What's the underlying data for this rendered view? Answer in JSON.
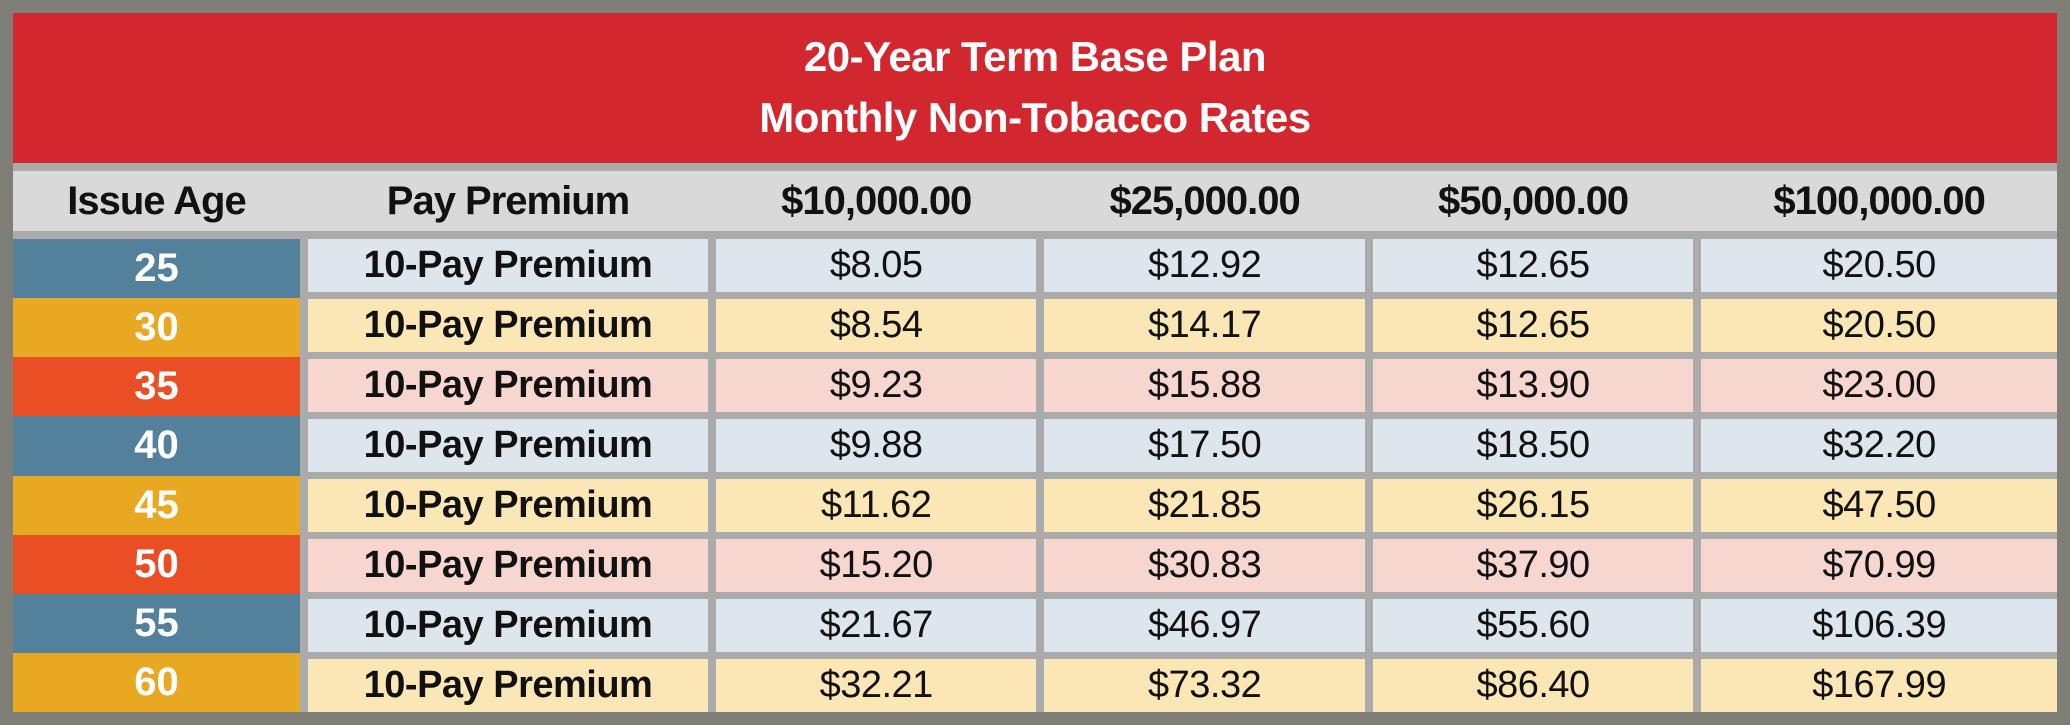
{
  "title": {
    "line1": "20-Year Term Base Plan",
    "line2": "Monthly Non-Tobacco Rates"
  },
  "columns": [
    "Issue Age",
    "Pay Premium",
    "$10,000.00",
    "$25,000.00",
    "$50,000.00",
    "$100,000.00"
  ],
  "table": {
    "rows": [
      {
        "age": "25",
        "plan": "10-Pay Premium",
        "theme": "blue",
        "rates": [
          "$8.05",
          "$12.92",
          "$12.65",
          "$20.50"
        ]
      },
      {
        "age": "30",
        "plan": "10-Pay Premium",
        "theme": "gold",
        "rates": [
          "$8.54",
          "$14.17",
          "$12.65",
          "$20.50"
        ]
      },
      {
        "age": "35",
        "plan": "10-Pay Premium",
        "theme": "orange",
        "rates": [
          "$9.23",
          "$15.88",
          "$13.90",
          "$23.00"
        ]
      },
      {
        "age": "40",
        "plan": "10-Pay Premium",
        "theme": "blue",
        "rates": [
          "$9.88",
          "$17.50",
          "$18.50",
          "$32.20"
        ]
      },
      {
        "age": "45",
        "plan": "10-Pay Premium",
        "theme": "gold",
        "rates": [
          "$11.62",
          "$21.85",
          "$26.15",
          "$47.50"
        ]
      },
      {
        "age": "50",
        "plan": "10-Pay Premium",
        "theme": "orange",
        "rates": [
          "$15.20",
          "$30.83",
          "$37.90",
          "$70.99"
        ]
      },
      {
        "age": "55",
        "plan": "10-Pay Premium",
        "theme": "blue",
        "rates": [
          "$21.67",
          "$46.97",
          "$55.60",
          "$106.39"
        ]
      },
      {
        "age": "60",
        "plan": "10-Pay Premium",
        "theme": "gold",
        "rates": [
          "$32.21",
          "$73.32",
          "$86.40",
          "$167.99"
        ]
      }
    ]
  },
  "chart_data": {
    "type": "table",
    "title": "20-Year Term Base Plan Monthly Non-Tobacco Rates",
    "columns": [
      "Issue Age",
      "Pay Premium",
      "$10,000.00",
      "$25,000.00",
      "$50,000.00",
      "$100,000.00"
    ],
    "rows": [
      [
        "25",
        "10-Pay Premium",
        8.05,
        12.92,
        12.65,
        20.5
      ],
      [
        "30",
        "10-Pay Premium",
        8.54,
        14.17,
        12.65,
        20.5
      ],
      [
        "35",
        "10-Pay Premium",
        9.23,
        15.88,
        13.9,
        23.0
      ],
      [
        "40",
        "10-Pay Premium",
        9.88,
        17.5,
        18.5,
        32.2
      ],
      [
        "45",
        "10-Pay Premium",
        11.62,
        21.85,
        26.15,
        47.5
      ],
      [
        "50",
        "10-Pay Premium",
        15.2,
        30.83,
        37.9,
        70.99
      ],
      [
        "55",
        "10-Pay Premium",
        21.67,
        46.97,
        55.6,
        106.39
      ],
      [
        "60",
        "10-Pay Premium",
        32.21,
        73.32,
        86.4,
        167.99
      ]
    ]
  },
  "colors": {
    "border-gray": "#7F7F78",
    "gap-silver": "#ABABAB",
    "banner-red": "#D2272F",
    "header-gray": "#D9D9D9",
    "blue": "#53809B",
    "blue-light": "#DCE6EC",
    "gold": "#E9A821",
    "gold-light": "#FBE7B5",
    "orange": "#E94E25",
    "orange-light": "#F8D6D0",
    "text-dark": "#111111",
    "white": "#FFFFFF"
  }
}
